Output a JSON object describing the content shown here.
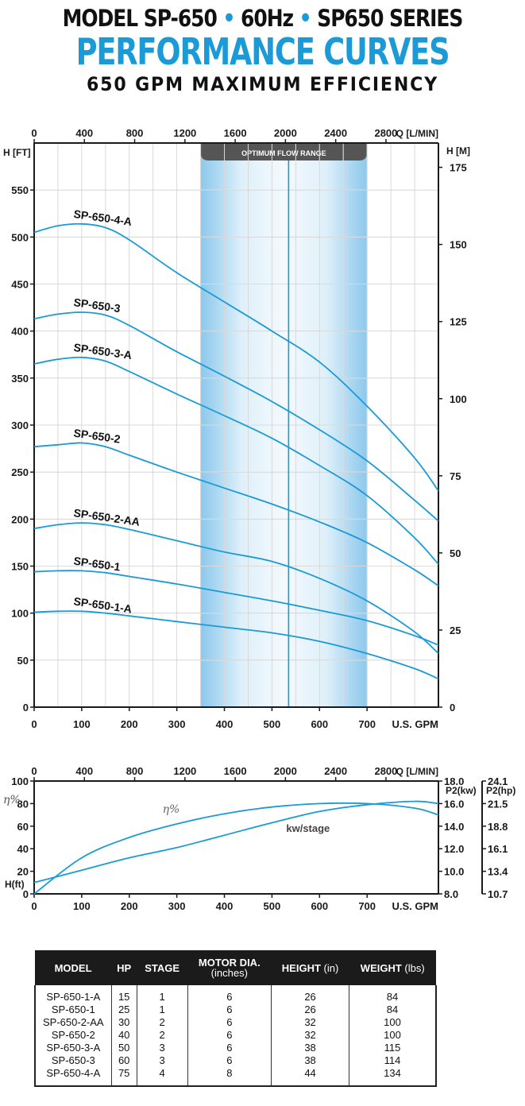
{
  "header": {
    "line1_parts": [
      "MODEL SP-650",
      "•",
      "60Hz",
      "•",
      "SP650 SERIES"
    ],
    "line2": "PERFORMANCE CURVES",
    "line3": "650 GPM MAXIMUM EFFICIENCY"
  },
  "colors": {
    "accent": "#1a9ad6",
    "band": "#bcdff3",
    "dark": "#1b1b1b"
  },
  "chart_data": [
    {
      "type": "line",
      "title": "",
      "xlabel": "U.S. GPM",
      "ylabel": "H [FT]",
      "xlim": [
        0,
        850
      ],
      "ylim": [
        0,
        600
      ],
      "x_ticks": [
        0,
        100,
        200,
        300,
        400,
        500,
        600,
        700
      ],
      "y_ticks": [
        0,
        50,
        100,
        150,
        200,
        250,
        300,
        350,
        400,
        450,
        500,
        550
      ],
      "top_axis": {
        "label": "Q [L/MIN]",
        "ticks": [
          0,
          400,
          800,
          1200,
          1600,
          2000,
          2400,
          2800
        ]
      },
      "right_axis": {
        "label": "H [M]",
        "ticks": [
          0,
          25,
          50,
          75,
          100,
          125,
          150,
          175
        ]
      },
      "optimum_flow_range": {
        "label": "OPTIMUM FLOW RANGE",
        "x_range": [
          350,
          700
        ],
        "marker_x": 535
      },
      "grid": true,
      "series": [
        {
          "name": "SP-650-4-A",
          "x": [
            0,
            50,
            100,
            150,
            200,
            300,
            400,
            500,
            600,
            700,
            800,
            850
          ],
          "y": [
            505,
            512,
            514,
            510,
            497,
            462,
            431,
            400,
            367,
            320,
            265,
            230
          ]
        },
        {
          "name": "SP-650-3",
          "x": [
            0,
            50,
            100,
            150,
            200,
            300,
            400,
            500,
            600,
            700,
            800,
            850
          ],
          "y": [
            413,
            418,
            420,
            417,
            406,
            378,
            352,
            325,
            295,
            262,
            220,
            198
          ]
        },
        {
          "name": "SP-650-3-A",
          "x": [
            0,
            50,
            100,
            150,
            200,
            300,
            400,
            500,
            600,
            700,
            800,
            850
          ],
          "y": [
            365,
            370,
            372,
            368,
            357,
            333,
            310,
            286,
            257,
            225,
            180,
            152
          ]
        },
        {
          "name": "SP-650-2",
          "x": [
            0,
            50,
            100,
            150,
            200,
            300,
            400,
            500,
            600,
            700,
            800,
            850
          ],
          "y": [
            277,
            279,
            281,
            277,
            268,
            250,
            233,
            216,
            197,
            175,
            146,
            129
          ]
        },
        {
          "name": "SP-650-2-AA",
          "x": [
            0,
            50,
            100,
            150,
            200,
            300,
            400,
            500,
            600,
            700,
            800,
            850
          ],
          "y": [
            190,
            194,
            196,
            194,
            189,
            177,
            165,
            155,
            137,
            113,
            80,
            57
          ]
        },
        {
          "name": "SP-650-1",
          "x": [
            0,
            50,
            100,
            150,
            200,
            300,
            400,
            500,
            600,
            700,
            800,
            850
          ],
          "y": [
            144,
            145,
            145,
            143,
            139,
            131,
            122,
            113,
            103,
            92,
            76,
            66
          ]
        },
        {
          "name": "SP-650-1-A",
          "x": [
            0,
            50,
            100,
            150,
            200,
            300,
            400,
            500,
            600,
            700,
            800,
            850
          ],
          "y": [
            101,
            102,
            102,
            100,
            97,
            91,
            85,
            79,
            70,
            57,
            41,
            30
          ]
        }
      ]
    },
    {
      "type": "line",
      "title": "",
      "xlabel": "U.S. GPM",
      "ylabel": "H(ft)",
      "xlim": [
        0,
        850
      ],
      "ylim": [
        0,
        100
      ],
      "x_ticks": [
        0,
        100,
        200,
        300,
        400,
        500,
        600,
        700
      ],
      "y_ticks": [
        0,
        20,
        40,
        60,
        80,
        100
      ],
      "y_axis_extra_label": "η%",
      "top_axis": {
        "label": "Q [L/MIN]",
        "ticks": [
          0,
          400,
          800,
          1200,
          1600,
          2000,
          2400,
          2800
        ]
      },
      "right_axis_kw": {
        "label": "P2(kw)",
        "ticks": [
          8.0,
          10.0,
          12.0,
          14.0,
          16.0,
          18.0
        ]
      },
      "right_axis_hp": {
        "label": "P2(hp)",
        "ticks": [
          10.7,
          13.4,
          16.1,
          18.8,
          21.5,
          24.1
        ]
      },
      "annotations": [
        "η%",
        "kw/stage"
      ],
      "grid": false,
      "series": [
        {
          "name": "η%",
          "x": [
            0,
            100,
            200,
            300,
            400,
            500,
            600,
            700,
            800,
            850
          ],
          "y": [
            0,
            32,
            50,
            62,
            71,
            77,
            80,
            80,
            76,
            70
          ]
        },
        {
          "name": "kw/stage",
          "x": [
            0,
            100,
            200,
            300,
            400,
            500,
            600,
            700,
            800,
            850
          ],
          "y": [
            9.0,
            10.1,
            11.2,
            12.1,
            13.2,
            14.3,
            15.3,
            15.9,
            16.2,
            16.0
          ]
        }
      ]
    }
  ],
  "table": {
    "headers": [
      {
        "main": "MODEL",
        "sub": ""
      },
      {
        "main": "HP",
        "sub": ""
      },
      {
        "main": "STAGE",
        "sub": ""
      },
      {
        "main": "MOTOR DIA.",
        "sub": "(inches)"
      },
      {
        "main": "HEIGHT",
        "sub": "(in)"
      },
      {
        "main": "WEIGHT",
        "sub": "(lbs)"
      }
    ],
    "rows": [
      [
        "SP-650-1-A",
        "15",
        "1",
        "6",
        "26",
        "84"
      ],
      [
        "SP-650-1",
        "25",
        "1",
        "6",
        "26",
        "84"
      ],
      [
        "SP-650-2-AA",
        "30",
        "2",
        "6",
        "32",
        "100"
      ],
      [
        "SP-650-2",
        "40",
        "2",
        "6",
        "32",
        "100"
      ],
      [
        "SP-650-3-A",
        "50",
        "3",
        "6",
        "38",
        "115"
      ],
      [
        "SP-650-3",
        "60",
        "3",
        "6",
        "38",
        "114"
      ],
      [
        "SP-650-4-A",
        "75",
        "4",
        "8",
        "44",
        "134"
      ]
    ]
  }
}
